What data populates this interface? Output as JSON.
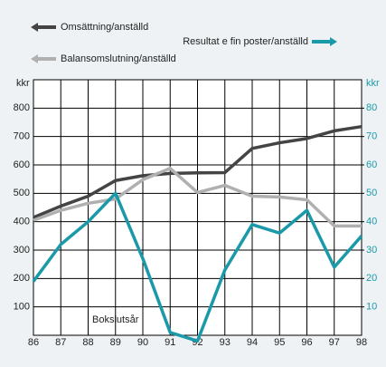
{
  "chart_data": {
    "type": "line",
    "categories": [
      "86",
      "87",
      "88",
      "89",
      "90",
      "91",
      "92",
      "93",
      "94",
      "95",
      "96",
      "97",
      "98"
    ],
    "series": [
      {
        "name": "Omsättning/anställd",
        "color": "#444444",
        "values": [
          415,
          455,
          490,
          545,
          562,
          570,
          572,
          573,
          658,
          678,
          693,
          720,
          735
        ]
      },
      {
        "name": "Balansomslutning/anställd",
        "color": "#b0b0b0",
        "values": [
          405,
          440,
          465,
          480,
          548,
          588,
          503,
          528,
          490,
          487,
          477,
          385,
          385
        ]
      },
      {
        "name": "Resultat e fin poster/anställd",
        "color": "#1a9aa8",
        "axis": "y2",
        "values": [
          19,
          32,
          40,
          50,
          27,
          1,
          -2,
          23,
          39,
          36,
          44,
          24,
          35
        ]
      }
    ],
    "ylabel": "kkr",
    "y2label": "kkr",
    "annotation": "Bokslutsår",
    "ylim": [
      0,
      900
    ],
    "yticks": [
      100,
      200,
      300,
      400,
      500,
      600,
      700,
      800
    ],
    "y2lim": [
      0,
      90
    ],
    "y2ticks": [
      10,
      20,
      30,
      40,
      50,
      60,
      70,
      80
    ],
    "grid": true
  }
}
